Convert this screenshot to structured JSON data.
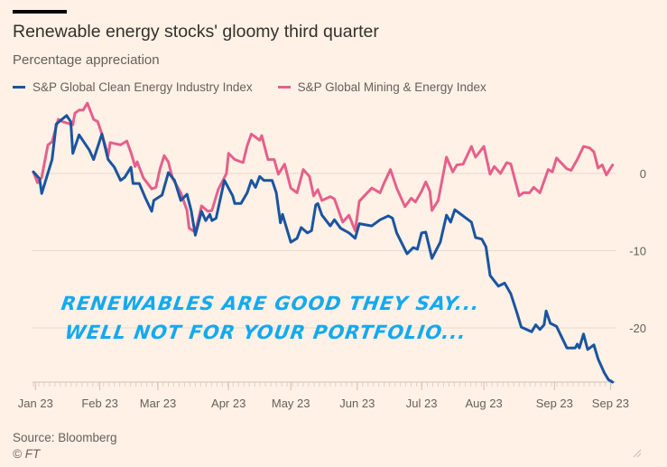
{
  "chart_data": {
    "type": "line",
    "title": "Renewable energy stocks' gloomy third quarter",
    "subtitle": "Percentage appreciation",
    "xlabel": "",
    "ylabel": "",
    "ylim": [
      -27.5,
      9.5
    ],
    "xlim": [
      0,
      279
    ],
    "y_ticks": [
      0,
      -10,
      -20
    ],
    "y_tick_labels": [
      "0",
      "-10",
      "-20"
    ],
    "x_ticks": [
      1,
      32,
      60,
      94,
      124,
      156,
      187,
      217,
      251,
      278
    ],
    "x_tick_labels": [
      "Jan 23",
      "Feb 23",
      "Mar 23",
      "Apr 23",
      "May 23",
      "Jun 23",
      "Jul 23",
      "Aug 23",
      "Sep 23",
      "Sep 23"
    ],
    "grid": true,
    "legend_position": "top-left",
    "series": [
      {
        "name": "S&P Global Clean Energy Industry Index",
        "color": "#1a54a0",
        "points": [
          [
            0,
            0.2
          ],
          [
            3,
            -0.7
          ],
          [
            4,
            -2.6
          ],
          [
            9,
            1.8
          ],
          [
            11,
            6.4
          ],
          [
            16,
            7.5
          ],
          [
            18,
            6.7
          ],
          [
            19,
            2.6
          ],
          [
            22,
            5.0
          ],
          [
            27,
            3.0
          ],
          [
            29,
            1.8
          ],
          [
            33,
            5.1
          ],
          [
            36,
            1.8
          ],
          [
            39,
            0.8
          ],
          [
            42,
            -0.9
          ],
          [
            44,
            -0.5
          ],
          [
            47,
            0.8
          ],
          [
            48,
            -1.3
          ],
          [
            51,
            -1.3
          ],
          [
            54,
            -3.2
          ],
          [
            57,
            -4.9
          ],
          [
            58,
            -3.5
          ],
          [
            62,
            -2.8
          ],
          [
            65,
            0.1
          ],
          [
            68,
            -0.9
          ],
          [
            71,
            -3.5
          ],
          [
            74,
            -2.7
          ],
          [
            76,
            -4.8
          ],
          [
            78,
            -8.0
          ],
          [
            81,
            -4.9
          ],
          [
            83,
            -6.1
          ],
          [
            85,
            -5.3
          ],
          [
            86,
            -6.1
          ],
          [
            88,
            -5.8
          ],
          [
            92,
            -0.9
          ],
          [
            96,
            -2.9
          ],
          [
            97,
            -3.9
          ],
          [
            100,
            -3.9
          ],
          [
            103,
            -2.5
          ],
          [
            105,
            -0.9
          ],
          [
            107,
            -1.8
          ],
          [
            109,
            -0.4
          ],
          [
            111,
            -0.9
          ],
          [
            115,
            -0.9
          ],
          [
            117,
            -2.5
          ],
          [
            119,
            -6.4
          ],
          [
            120,
            -5.3
          ],
          [
            124,
            -8.9
          ],
          [
            127,
            -8.4
          ],
          [
            129,
            -7.0
          ],
          [
            132,
            -7.7
          ],
          [
            134,
            -7.4
          ],
          [
            136,
            -4.1
          ],
          [
            137,
            -3.9
          ],
          [
            139,
            -5.4
          ],
          [
            143,
            -6.8
          ],
          [
            145,
            -6.0
          ],
          [
            148,
            -7.1
          ],
          [
            152,
            -7.7
          ],
          [
            155,
            -8.4
          ],
          [
            157,
            -6.5
          ],
          [
            163,
            -6.8
          ],
          [
            167,
            -6.0
          ],
          [
            171,
            -5.5
          ],
          [
            173,
            -5.8
          ],
          [
            175,
            -7.7
          ],
          [
            180,
            -10.4
          ],
          [
            183,
            -9.6
          ],
          [
            185,
            -9.8
          ],
          [
            187,
            -7.7
          ],
          [
            189,
            -7.6
          ],
          [
            192,
            -11.0
          ],
          [
            196,
            -8.9
          ],
          [
            199,
            -5.4
          ],
          [
            201,
            -6.3
          ],
          [
            203,
            -4.7
          ],
          [
            206,
            -5.3
          ],
          [
            211,
            -6.3
          ],
          [
            213,
            -8.3
          ],
          [
            216,
            -8.5
          ],
          [
            218,
            -9.5
          ],
          [
            220,
            -13.2
          ],
          [
            224,
            -14.6
          ],
          [
            227,
            -14.2
          ],
          [
            230,
            -15.6
          ],
          [
            233,
            -18.1
          ],
          [
            235,
            -19.9
          ],
          [
            240,
            -20.5
          ],
          [
            242,
            -19.6
          ],
          [
            244,
            -20.2
          ],
          [
            246,
            -19.6
          ],
          [
            247,
            -17.8
          ],
          [
            249,
            -19.4
          ],
          [
            252,
            -19.8
          ],
          [
            257,
            -22.6
          ],
          [
            261,
            -22.6
          ],
          [
            262,
            -22.1
          ],
          [
            263,
            -22.6
          ],
          [
            265,
            -20.8
          ],
          [
            267,
            -22.8
          ],
          [
            270,
            -22.2
          ],
          [
            272,
            -24.0
          ],
          [
            275,
            -25.8
          ],
          [
            277,
            -26.7
          ],
          [
            279,
            -27.0
          ]
        ]
      },
      {
        "name": "S&P Global Mining & Energy Index",
        "color": "#e5608c",
        "points": [
          [
            0,
            0.2
          ],
          [
            2,
            -1.2
          ],
          [
            4,
            -0.5
          ],
          [
            7,
            3.7
          ],
          [
            9,
            4.1
          ],
          [
            12,
            7.0
          ],
          [
            14,
            6.7
          ],
          [
            19,
            6.3
          ],
          [
            20,
            7.8
          ],
          [
            22,
            8.2
          ],
          [
            24,
            8.2
          ],
          [
            26,
            9.1
          ],
          [
            29,
            7.0
          ],
          [
            31,
            6.7
          ],
          [
            33,
            5.1
          ],
          [
            36,
            2.3
          ],
          [
            37,
            4.0
          ],
          [
            42,
            3.7
          ],
          [
            45,
            4.2
          ],
          [
            47,
            2.7
          ],
          [
            49,
            0.9
          ],
          [
            50,
            1.5
          ],
          [
            53,
            -0.6
          ],
          [
            57,
            -2.0
          ],
          [
            59,
            -1.8
          ],
          [
            61,
            0.6
          ],
          [
            63,
            2.3
          ],
          [
            65,
            1.5
          ],
          [
            67,
            -0.6
          ],
          [
            71,
            -2.5
          ],
          [
            74,
            -4.8
          ],
          [
            75,
            -7.1
          ],
          [
            78,
            -7.6
          ],
          [
            81,
            -4.2
          ],
          [
            84,
            -4.9
          ],
          [
            86,
            -4.8
          ],
          [
            89,
            -2.1
          ],
          [
            93,
            0.0
          ],
          [
            94,
            2.6
          ],
          [
            97,
            1.8
          ],
          [
            101,
            1.4
          ],
          [
            103,
            3.6
          ],
          [
            105,
            5.1
          ],
          [
            109,
            4.3
          ],
          [
            110,
            4.9
          ],
          [
            113,
            1.8
          ],
          [
            116,
            1.8
          ],
          [
            118,
            -0.1
          ],
          [
            121,
            1.2
          ],
          [
            124,
            -1.9
          ],
          [
            127,
            -2.5
          ],
          [
            130,
            0.5
          ],
          [
            133,
            -0.4
          ],
          [
            135,
            -2.9
          ],
          [
            137,
            -2.1
          ],
          [
            139,
            -3.5
          ],
          [
            143,
            -3.0
          ],
          [
            145,
            -3.3
          ],
          [
            149,
            -6.3
          ],
          [
            152,
            -5.4
          ],
          [
            155,
            -7.4
          ],
          [
            157,
            -3.6
          ],
          [
            163,
            -1.9
          ],
          [
            167,
            -2.5
          ],
          [
            169,
            -1.2
          ],
          [
            172,
            0.5
          ],
          [
            175,
            -1.9
          ],
          [
            179,
            -4.3
          ],
          [
            182,
            -3.2
          ],
          [
            184,
            -3.7
          ],
          [
            187,
            -2.3
          ],
          [
            189,
            -1.1
          ],
          [
            191,
            -2.3
          ],
          [
            192,
            -4.8
          ],
          [
            195,
            -3.5
          ],
          [
            199,
            2.1
          ],
          [
            202,
            0.2
          ],
          [
            204,
            1.1
          ],
          [
            207,
            1.2
          ],
          [
            211,
            3.5
          ],
          [
            213,
            2.1
          ],
          [
            217,
            3.5
          ],
          [
            220,
            -0.1
          ],
          [
            222,
            0.9
          ],
          [
            225,
            0.0
          ],
          [
            228,
            1.4
          ],
          [
            230,
            1.2
          ],
          [
            234,
            -2.9
          ],
          [
            236,
            -2.5
          ],
          [
            239,
            -2.5
          ],
          [
            241,
            -1.8
          ],
          [
            244,
            -2.5
          ],
          [
            248,
            0.5
          ],
          [
            250,
            0.2
          ],
          [
            252,
            2.0
          ],
          [
            257,
            0.6
          ],
          [
            259,
            0.4
          ],
          [
            262,
            1.8
          ],
          [
            265,
            3.5
          ],
          [
            268,
            3.3
          ],
          [
            270,
            2.8
          ],
          [
            272,
            0.7
          ],
          [
            274,
            1.1
          ],
          [
            276,
            -0.2
          ],
          [
            279,
            1.1
          ]
        ]
      }
    ],
    "annotations": [
      "RENEWABLES ARE GOOD THEY SAY...",
      "WELL NOT FOR YOUR PORTFOLIO..."
    ]
  },
  "footer": {
    "source": "Source: Bloomberg",
    "copyright": "© FT"
  },
  "icons": {
    "resize_handle": "resize-handle-icon"
  }
}
